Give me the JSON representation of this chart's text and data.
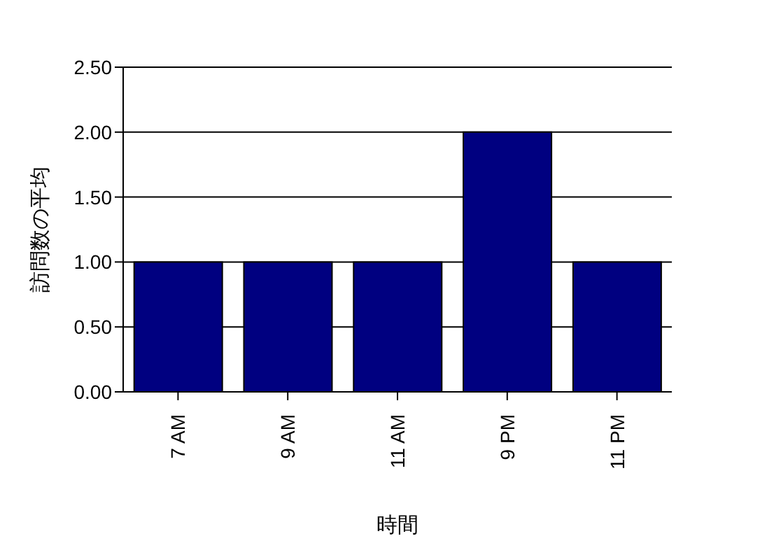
{
  "chart_data": {
    "type": "bar",
    "xlabel": "時間",
    "ylabel": "訪問数の平均",
    "categories": [
      "7 AM",
      "9 AM",
      "11 AM",
      "9 PM",
      "11 PM"
    ],
    "series": [
      {
        "color": "#000080",
        "values": [
          1,
          1,
          1,
          2,
          1
        ]
      }
    ],
    "ylim": [
      0,
      2.5
    ],
    "yticks": [
      {
        "value": 0,
        "label": "0.00"
      },
      {
        "value": 0.5,
        "label": "0.50"
      },
      {
        "value": 1,
        "label": "1.00"
      },
      {
        "value": 1.5,
        "label": "1.50"
      },
      {
        "value": 2,
        "label": "2.00"
      },
      {
        "value": 2.5,
        "label": "2.50"
      }
    ],
    "grid": "y"
  }
}
